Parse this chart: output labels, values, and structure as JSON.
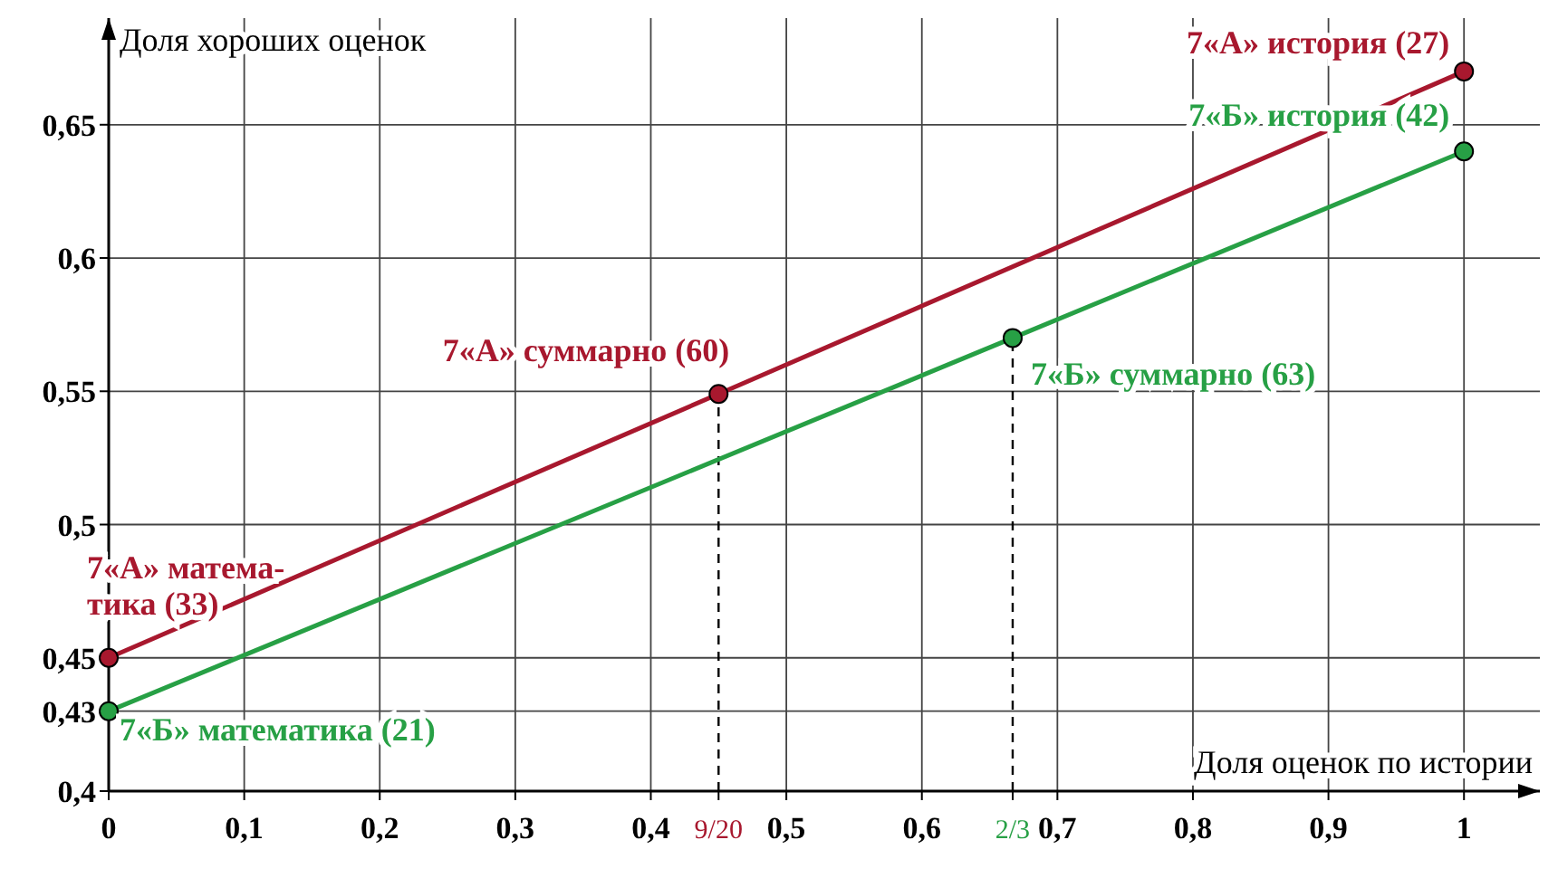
{
  "chart_data": {
    "type": "line",
    "xlabel": "Доля оценок по истории",
    "ylabel": "Доля хороших оценок",
    "xlim": [
      0,
      1.056
    ],
    "ylim": [
      0.4,
      0.69
    ],
    "xticks": [
      0,
      {
        "value": 0.1,
        "label": "0,1"
      },
      {
        "value": 0.2,
        "label": "0,2"
      },
      {
        "value": 0.3,
        "label": "0,3"
      },
      {
        "value": 0.4,
        "label": "0,4"
      },
      {
        "value": 0.45,
        "label": "9/20"
      },
      {
        "value": 0.5,
        "label": "0,5"
      },
      {
        "value": 0.6,
        "label": "0,6"
      },
      {
        "value": 0.667,
        "label": "2/3"
      },
      {
        "value": 0.7,
        "label": "0,7"
      },
      {
        "value": 0.8,
        "label": "0,8"
      },
      {
        "value": 0.9,
        "label": "0,9"
      },
      1
    ],
    "yticks": [
      {
        "value": 0.4,
        "label": "0,4"
      },
      {
        "value": 0.43,
        "label": "0,43"
      },
      {
        "value": 0.45,
        "label": "0,45"
      },
      {
        "value": 0.5,
        "label": "0,5"
      },
      {
        "value": 0.55,
        "label": "0,55"
      },
      {
        "value": 0.6,
        "label": "0,6"
      },
      {
        "value": 0.65,
        "label": "0,65"
      }
    ],
    "grid": true,
    "marker": "circle",
    "line_style": "solid",
    "series": [
      {
        "color": "#a8182e",
        "x": [
          0,
          0.45,
          1
        ],
        "values": [
          0.45,
          0.549,
          0.67
        ]
      },
      {
        "color": "#27a045",
        "x": [
          0,
          0.667,
          1
        ],
        "values": [
          0.43,
          0.57,
          0.64
        ]
      }
    ],
    "ref_lines": [
      {
        "axis": "x",
        "value": 0.45,
        "line_style": "dashed"
      },
      {
        "axis": "x",
        "value": 0.667,
        "line_style": "dashed"
      }
    ],
    "annotations": [
      {
        "text": "7«А» история (27)",
        "x": 1,
        "y": 0.67
      },
      {
        "text": "7«Б» история (42)",
        "x": 1,
        "y": 0.64
      },
      {
        "text": "7«А» суммарно (60)",
        "x": 0.45,
        "y": 0.549
      },
      {
        "text": "7«Б» суммарно (63)",
        "x": 0.667,
        "y": 0.57
      },
      {
        "text": "7«А» матема-\nтика (33)",
        "x": 0,
        "y": 0.45
      },
      {
        "text": "7«Б» математика (21)",
        "x": 0,
        "y": 0.43
      }
    ]
  }
}
